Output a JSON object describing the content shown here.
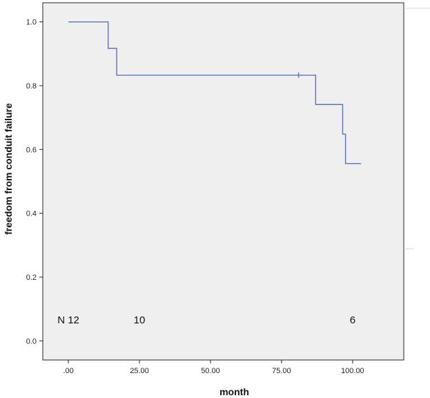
{
  "chart_data": {
    "type": "line",
    "title": "",
    "xlabel": "month",
    "ylabel": "freedom from conduit failure",
    "xlim": [
      -9,
      118
    ],
    "ylim": [
      -0.06,
      1.06
    ],
    "x_ticks": [
      0,
      25,
      50,
      75,
      100
    ],
    "x_tick_labels": [
      ".00",
      "25.00",
      "50.00",
      "75.00",
      "100.00"
    ],
    "y_ticks": [
      0.0,
      0.2,
      0.4,
      0.6,
      0.8,
      1.0
    ],
    "y_tick_labels": [
      "0.0",
      "0.2",
      "0.4",
      "0.6",
      "0.8",
      "1.0"
    ],
    "grid": false,
    "plot_background": "#efefef",
    "line_color": "#5b73b8",
    "series": [
      {
        "step": true,
        "x": [
          0,
          14,
          17,
          87,
          96.5,
          97.5,
          103
        ],
        "y": [
          1.0,
          0.917,
          0.833,
          0.741,
          0.648,
          0.556,
          0.556
        ]
      }
    ],
    "censored": [
      {
        "x": 81,
        "y": 0.833
      }
    ],
    "number_at_risk": [
      {
        "x": 0,
        "label": "N 12"
      },
      {
        "x": 25,
        "label": "10"
      },
      {
        "x": 100,
        "label": "6"
      }
    ],
    "risk_y": 0.055
  }
}
